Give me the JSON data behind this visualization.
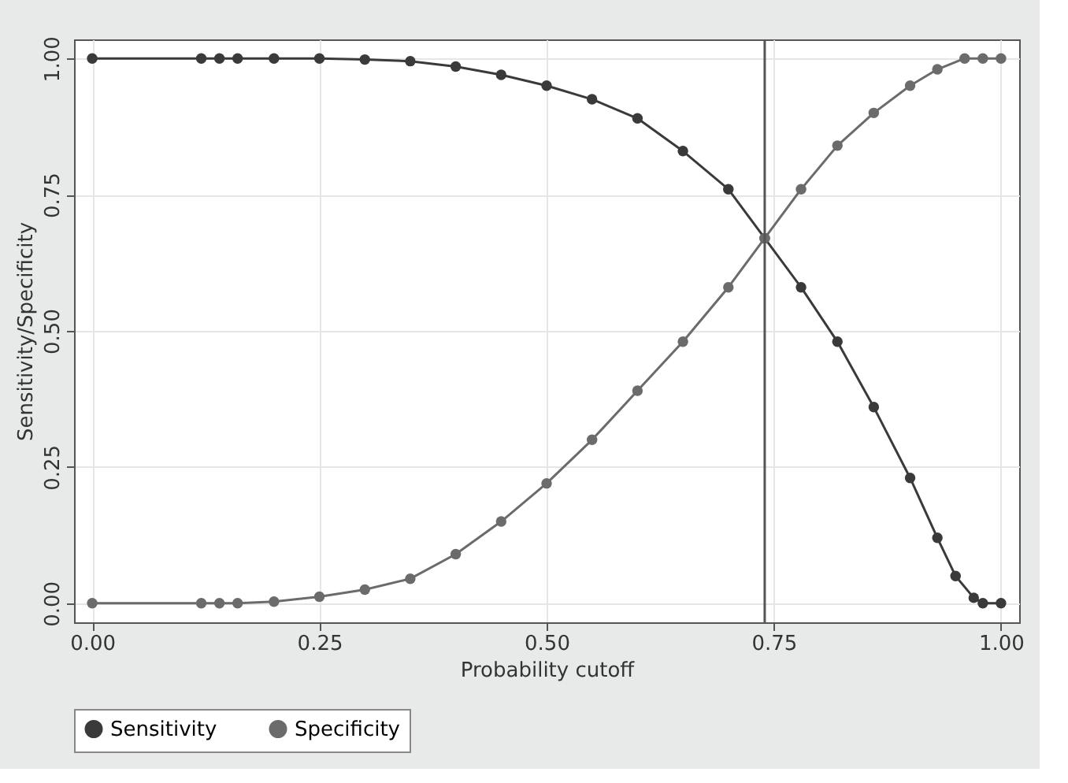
{
  "chart_data": {
    "type": "line",
    "xlabel": "Probability cutoff",
    "ylabel": "Sensitivity/Specificity",
    "xlim": [
      -0.02,
      1.02
    ],
    "ylim": [
      -0.035,
      1.035
    ],
    "xticks": [
      {
        "value": 0,
        "label": "0.00"
      },
      {
        "value": 0.25,
        "label": "0.25"
      },
      {
        "value": 0.5,
        "label": "0.50"
      },
      {
        "value": 0.75,
        "label": "0.75"
      },
      {
        "value": 1,
        "label": "1.00"
      }
    ],
    "yticks": [
      {
        "value": 0,
        "label": "0.00"
      },
      {
        "value": 0.25,
        "label": "0.25"
      },
      {
        "value": 0.5,
        "label": "0.50"
      },
      {
        "value": 0.75,
        "label": "0.75"
      },
      {
        "value": 1,
        "label": "1.00"
      }
    ],
    "grid": true,
    "legend": "bottom",
    "marker": "circle",
    "line_style": "solid",
    "ref_lines": [
      {
        "axis": "x",
        "value": 0.74,
        "color": "#555555"
      }
    ],
    "series": [
      {
        "name": "Sensitivity",
        "color": "#3a3a3a",
        "x": [
          0,
          0.12,
          0.14,
          0.16,
          0.2,
          0.25,
          0.3,
          0.35,
          0.4,
          0.45,
          0.5,
          0.55,
          0.6,
          0.65,
          0.7,
          0.74,
          0.78,
          0.82,
          0.86,
          0.9,
          0.93,
          0.95,
          0.97,
          0.98,
          1.0
        ],
        "values": [
          1,
          1,
          1,
          1,
          1,
          1,
          0.998,
          0.995,
          0.985,
          0.97,
          0.95,
          0.925,
          0.89,
          0.83,
          0.76,
          0.67,
          0.58,
          0.48,
          0.36,
          0.23,
          0.12,
          0.05,
          0.01,
          0,
          0
        ]
      },
      {
        "name": "Specificity",
        "color": "#6b6b6b",
        "x": [
          0,
          0.12,
          0.14,
          0.16,
          0.2,
          0.25,
          0.3,
          0.35,
          0.4,
          0.45,
          0.5,
          0.55,
          0.6,
          0.65,
          0.7,
          0.74,
          0.78,
          0.82,
          0.86,
          0.9,
          0.93,
          0.96,
          0.98,
          1.0
        ],
        "values": [
          0,
          0,
          0,
          0,
          0.003,
          0.012,
          0.025,
          0.045,
          0.09,
          0.15,
          0.22,
          0.3,
          0.39,
          0.48,
          0.58,
          0.67,
          0.76,
          0.84,
          0.9,
          0.95,
          0.98,
          1,
          1,
          1
        ]
      }
    ]
  }
}
